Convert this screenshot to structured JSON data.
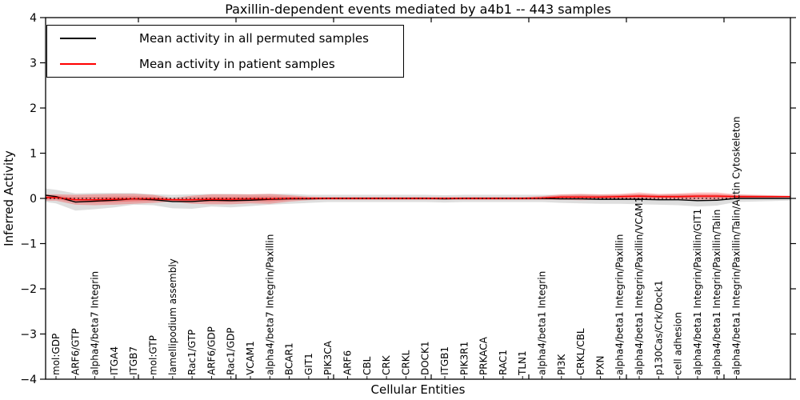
{
  "chart_data": {
    "type": "line",
    "title": "Paxillin-dependent events mediated by a4b1 -- 443 samples",
    "xlabel": "Cellular Entities",
    "ylabel": "Inferred Activity",
    "ylim": [
      -4,
      4
    ],
    "yticks": [
      -4,
      -3,
      -2,
      -1,
      0,
      1,
      2,
      3,
      4
    ],
    "grid": false,
    "zero_line": true,
    "legend_position": "upper left",
    "categories": [
      "mol:GDP",
      "ARF6/GTP",
      "alpha4/beta7 Integrin",
      "ITGA4",
      "ITGB7",
      "mol:GTP",
      "lamellipodium assembly",
      "Rac1/GTP",
      "ARF6/GDP",
      "Rac1/GDP",
      "VCAM1",
      "alpha4/beta7 Integrin/Paxillin",
      "BCAR1",
      "GIT1",
      "PIK3CA",
      "ARF6",
      "CBL",
      "CRK",
      "CRKL",
      "DOCK1",
      "ITGB1",
      "PIK3R1",
      "PRKACA",
      "RAC1",
      "TLN1",
      "alpha4/beta1 Integrin",
      "PI3K",
      "CRKL/CBL",
      "PXN",
      "alpha4/beta1 Integrin/Paxillin",
      "alpha4/beta1 Integrin/Paxillin/VCAM1",
      "p130Cas/Crk/Dock1",
      "cell adhesion",
      "alpha4/beta1 Integrin/Paxillin/GIT1",
      "alpha4/beta1 Integrin/Paxillin/Talin",
      "alpha4/beta1 Integrin/Paxillin/Talin/Actin Cytoskeleton"
    ],
    "series": [
      {
        "name": "Mean activity in all permuted samples",
        "color": "#000000",
        "band_color": "rgba(0,0,0,0.13)",
        "values": [
          0.04,
          -0.08,
          -0.06,
          -0.04,
          -0.01,
          -0.03,
          -0.07,
          -0.07,
          -0.04,
          -0.05,
          -0.04,
          -0.02,
          -0.01,
          -0.01,
          0,
          0,
          0,
          0,
          0,
          0,
          -0.01,
          0,
          0,
          0,
          0,
          0,
          -0.01,
          -0.01,
          -0.02,
          -0.02,
          -0.02,
          -0.03,
          -0.03,
          -0.05,
          -0.04,
          0
        ],
        "band_halfwidth": [
          0.15,
          0.19,
          0.18,
          0.16,
          0.13,
          0.12,
          0.15,
          0.16,
          0.14,
          0.15,
          0.13,
          0.12,
          0.11,
          0.09,
          0.08,
          0.08,
          0.08,
          0.08,
          0.08,
          0.08,
          0.08,
          0.08,
          0.08,
          0.08,
          0.08,
          0.08,
          0.09,
          0.1,
          0.1,
          0.1,
          0.11,
          0.11,
          0.12,
          0.13,
          0.12,
          0.08
        ]
      },
      {
        "name": "Mean activity in patient samples",
        "color": "#ff0000",
        "band_color": "rgba(255,0,0,0.25)",
        "values": [
          0.02,
          -0.03,
          -0.03,
          -0.02,
          -0.01,
          -0.01,
          -0.03,
          -0.03,
          -0.02,
          -0.02,
          -0.01,
          -0.01,
          0,
          0,
          0,
          0,
          0,
          0,
          0,
          0,
          0,
          0,
          0,
          0,
          0,
          0.01,
          0.03,
          0.03,
          0.03,
          0.04,
          0.05,
          0.04,
          0.04,
          0.05,
          0.05,
          0.04
        ],
        "band_halfwidth": [
          0.07,
          0.11,
          0.12,
          0.12,
          0.11,
          0.09,
          0.04,
          0.09,
          0.11,
          0.11,
          0.1,
          0.11,
          0.07,
          0.04,
          0.03,
          0.03,
          0.03,
          0.03,
          0.03,
          0.03,
          0.03,
          0.03,
          0.03,
          0.03,
          0.03,
          0.04,
          0.06,
          0.07,
          0.06,
          0.06,
          0.08,
          0.06,
          0.07,
          0.08,
          0.08,
          0.05
        ]
      }
    ]
  },
  "legend": {
    "items": [
      {
        "label": "Mean activity in all permuted samples",
        "color": "#000000"
      },
      {
        "label": "Mean activity in patient samples",
        "color": "#ff0000"
      }
    ]
  }
}
